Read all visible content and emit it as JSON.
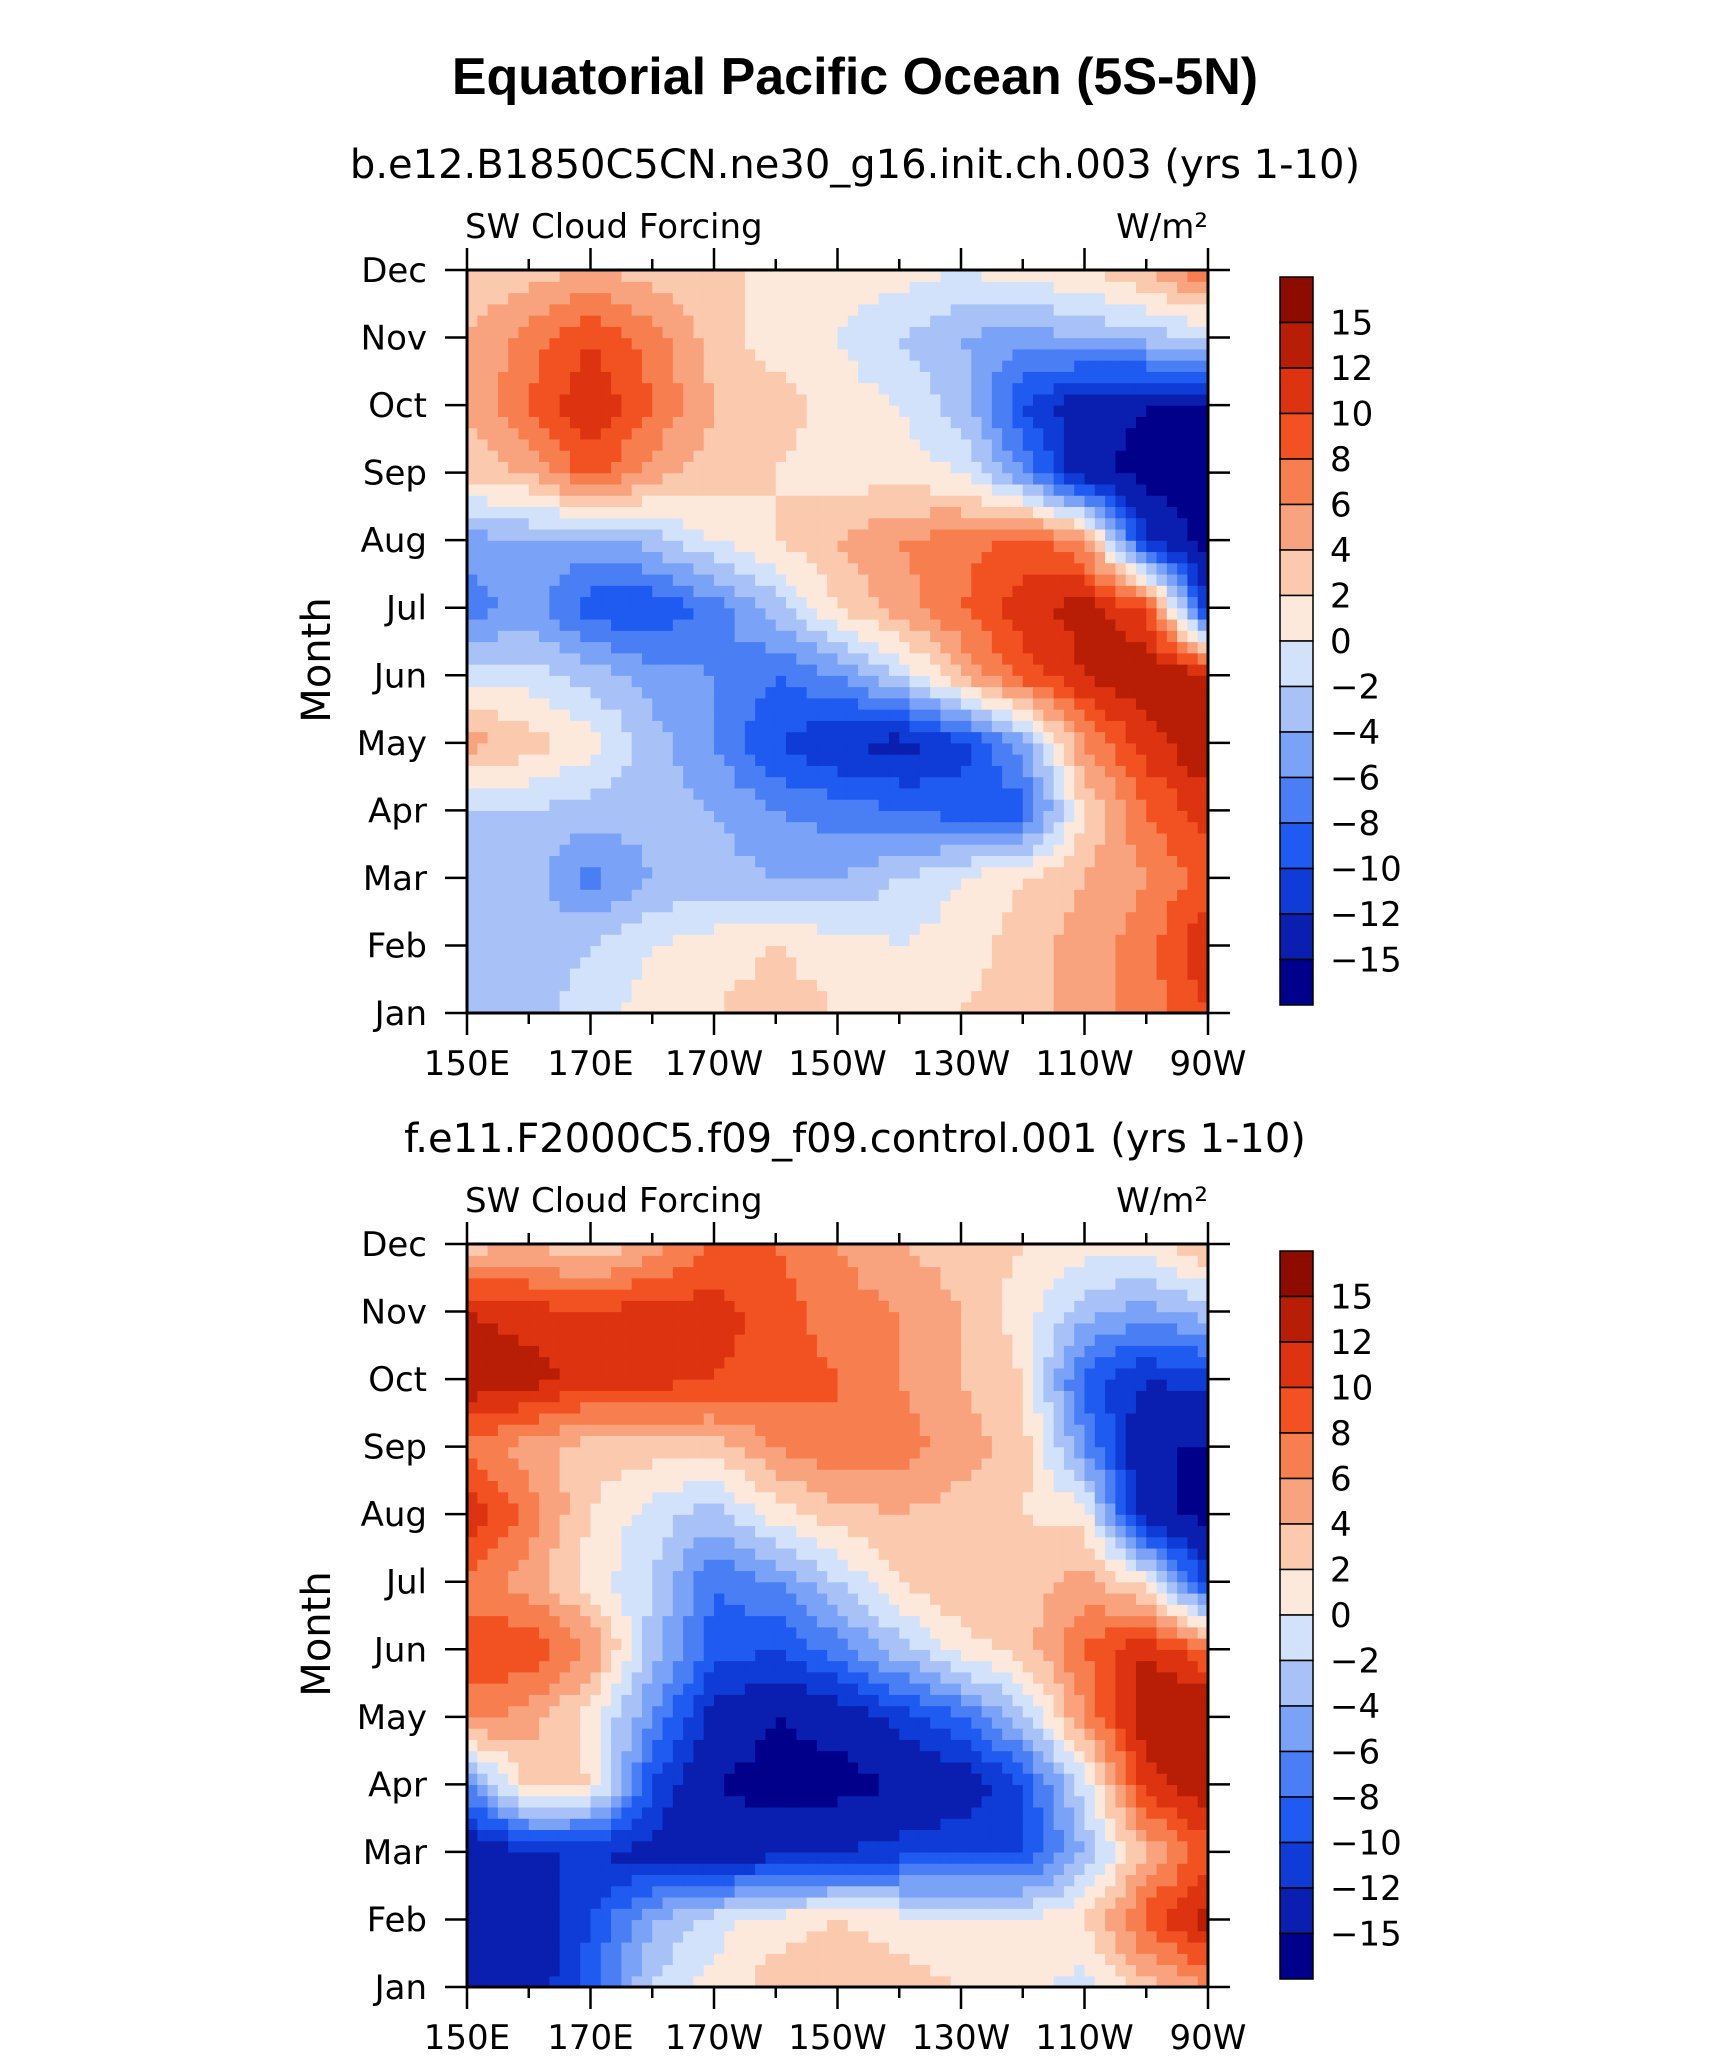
{
  "figure": {
    "title": "Equatorial Pacific Ocean (5S-5N)"
  },
  "chart_data": [
    {
      "type": "heatmap",
      "subtitle": "b.e12.B1850C5CN.ne30_g16.init.ch.003 (yrs 1-10)",
      "left_label": "SW Cloud Forcing",
      "units": "W/m²",
      "ylabel": "Month",
      "xlabel": "",
      "x_ticks": [
        "150E",
        "170E",
        "170W",
        "150W",
        "130W",
        "110W",
        "90W"
      ],
      "y_ticks": [
        "Jan",
        "Feb",
        "Mar",
        "Apr",
        "May",
        "Jun",
        "Jul",
        "Aug",
        "Sep",
        "Oct",
        "Nov",
        "Dec"
      ],
      "x": [
        150,
        160,
        170,
        180,
        190,
        200,
        210,
        220,
        230,
        240,
        250,
        260,
        270
      ],
      "y": [
        "Jan",
        "Feb",
        "Mar",
        "Apr",
        "May",
        "Jun",
        "Jul",
        "Aug",
        "Sep",
        "Oct",
        "Nov",
        "Dec"
      ],
      "z": [
        [
          -3,
          -3,
          -1,
          1,
          2,
          3,
          2,
          2,
          2,
          3,
          5,
          7,
          10
        ],
        [
          -4,
          -3,
          -2,
          0,
          1,
          2,
          1,
          0,
          1,
          3,
          5,
          7,
          12
        ],
        [
          -3,
          -3,
          -7,
          -4,
          -3,
          -4,
          -4,
          -2,
          0,
          2,
          4,
          6,
          9
        ],
        [
          -2,
          -2,
          -3,
          -3,
          -4,
          -6,
          -7,
          -8,
          -9,
          -9,
          2,
          8,
          11
        ],
        [
          5,
          3,
          1,
          -3,
          -6,
          -10,
          -12,
          -13,
          -11,
          -5,
          6,
          11,
          14
        ],
        [
          -1,
          -1,
          -3,
          -5,
          -6,
          -8,
          -6,
          -2,
          4,
          9,
          12,
          14,
          13
        ],
        [
          -7,
          -5,
          -9,
          -10,
          -7,
          -3,
          2,
          5,
          8,
          11,
          13,
          10,
          -12
        ],
        [
          -5,
          -4,
          -5,
          -3,
          0,
          2,
          4,
          6,
          7,
          9,
          6,
          -12,
          -16
        ],
        [
          3,
          4,
          9,
          5,
          3,
          2,
          1,
          1,
          0,
          -6,
          -14,
          -16,
          -16
        ],
        [
          4,
          8,
          12,
          8,
          4,
          3,
          1,
          0,
          -3,
          -10,
          -14,
          -15,
          -15
        ],
        [
          4,
          7,
          10,
          7,
          3,
          1,
          0,
          -2,
          -4,
          -5,
          -4,
          -3,
          -2
        ],
        [
          2,
          3,
          4,
          3,
          2,
          2,
          1,
          1,
          0,
          1,
          2,
          4,
          8
        ]
      ],
      "levels": [
        -15,
        -12,
        -10,
        -8,
        -6,
        -4,
        -2,
        0,
        2,
        4,
        6,
        8,
        10,
        12,
        15
      ],
      "colorbar_labels": [
        "15",
        "12",
        "10",
        "8",
        "6",
        "4",
        "2",
        "0",
        "−2",
        "−4",
        "−6",
        "−8",
        "−10",
        "−12",
        "−15"
      ],
      "colors": [
        "#00008b",
        "#0a1fb0",
        "#0f3bd6",
        "#1f5bf0",
        "#4a7ef5",
        "#7aa2f7",
        "#a8c2f8",
        "#d3e2fb",
        "#fde9dc",
        "#fbc9ad",
        "#f9a37e",
        "#f77e4f",
        "#f25221",
        "#dd3310",
        "#b81d05",
        "#8c0c00"
      ]
    },
    {
      "type": "heatmap",
      "subtitle": "f.e11.F2000C5.f09_f09.control.001 (yrs 1-10)",
      "left_label": "SW Cloud Forcing",
      "units": "W/m²",
      "ylabel": "Month",
      "xlabel": "",
      "x_ticks": [
        "150E",
        "170E",
        "170W",
        "150W",
        "130W",
        "110W",
        "90W"
      ],
      "y_ticks": [
        "Jan",
        "Feb",
        "Mar",
        "Apr",
        "May",
        "Jun",
        "Jul",
        "Aug",
        "Sep",
        "Oct",
        "Nov",
        "Dec"
      ],
      "x": [
        150,
        160,
        170,
        180,
        190,
        200,
        210,
        220,
        230,
        240,
        250,
        260,
        270
      ],
      "y": [
        "Jan",
        "Feb",
        "Mar",
        "Apr",
        "May",
        "Jun",
        "Jul",
        "Aug",
        "Sep",
        "Oct",
        "Nov",
        "Dec"
      ],
      "z": [
        [
          -15,
          -14,
          -9,
          -2,
          1,
          3,
          4,
          3,
          2,
          1,
          -1,
          3,
          6
        ],
        [
          -15,
          -14,
          -10,
          -4,
          -1,
          1,
          2,
          1,
          0,
          0,
          2,
          9,
          13
        ],
        [
          -15,
          -12,
          -12,
          -13,
          -14,
          -13,
          -12,
          -11,
          -10,
          -10,
          -4,
          4,
          9
        ],
        [
          -6,
          3,
          2,
          -10,
          -15,
          -16,
          -16,
          -15,
          -14,
          -10,
          -1,
          11,
          14
        ],
        [
          7,
          5,
          1,
          -6,
          -13,
          -15,
          -14,
          -11,
          -8,
          -3,
          6,
          14,
          15
        ],
        [
          9,
          10,
          6,
          -3,
          -9,
          -10,
          -7,
          -3,
          1,
          3,
          8,
          12,
          8
        ],
        [
          7,
          5,
          1,
          -2,
          -8,
          -6,
          -2,
          2,
          4,
          3,
          5,
          1,
          -11
        ],
        [
          12,
          7,
          2,
          -1,
          -3,
          1,
          3,
          4,
          3,
          2,
          1,
          -14,
          -16
        ],
        [
          7,
          5,
          3,
          3,
          3,
          6,
          8,
          7,
          5,
          3,
          -6,
          -15,
          -15
        ],
        [
          14,
          13,
          11,
          11,
          10,
          9,
          8,
          6,
          4,
          2,
          -9,
          -12,
          -11
        ],
        [
          12,
          11,
          10,
          11,
          11,
          9,
          7,
          6,
          4,
          1,
          -3,
          -5,
          -3
        ],
        [
          3,
          4,
          2,
          5,
          8,
          8,
          6,
          4,
          3,
          2,
          1,
          1,
          4
        ]
      ],
      "levels": [
        -15,
        -12,
        -10,
        -8,
        -6,
        -4,
        -2,
        0,
        2,
        4,
        6,
        8,
        10,
        12,
        15
      ],
      "colorbar_labels": [
        "15",
        "12",
        "10",
        "8",
        "6",
        "4",
        "2",
        "0",
        "−2",
        "−4",
        "−6",
        "−8",
        "−10",
        "−12",
        "−15"
      ],
      "colors": [
        "#00008b",
        "#0a1fb0",
        "#0f3bd6",
        "#1f5bf0",
        "#4a7ef5",
        "#7aa2f7",
        "#a8c2f8",
        "#d3e2fb",
        "#fde9dc",
        "#fbc9ad",
        "#f9a37e",
        "#f77e4f",
        "#f25221",
        "#dd3310",
        "#b81d05",
        "#8c0c00"
      ]
    }
  ]
}
